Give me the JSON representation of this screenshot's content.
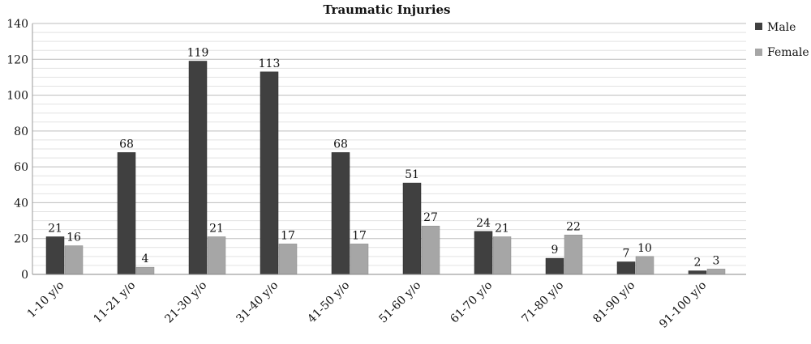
{
  "chart_data": {
    "type": "bar",
    "title": "Traumatic Injuries",
    "xlabel": "",
    "ylabel": "",
    "ylim": [
      0,
      140
    ],
    "yticks": [
      0,
      20,
      40,
      60,
      80,
      100,
      120,
      140
    ],
    "grid": true,
    "legend_position": "right",
    "categories": [
      "1-10 y/o",
      "11-21 y/o",
      "21-30 y/o",
      "31-40 y/o",
      "41-50 y/o",
      "51-60 y/o",
      "61-70 y/o",
      "71-80 y/o",
      "81-90 y/o",
      "91-100 y/o"
    ],
    "series": [
      {
        "name": "Male",
        "color": "#404040",
        "values": [
          21,
          68,
          119,
          113,
          68,
          51,
          24,
          9,
          7,
          2
        ]
      },
      {
        "name": "Female",
        "color": "#a6a6a6",
        "values": [
          16,
          4,
          21,
          17,
          17,
          27,
          21,
          22,
          10,
          3
        ]
      }
    ]
  }
}
